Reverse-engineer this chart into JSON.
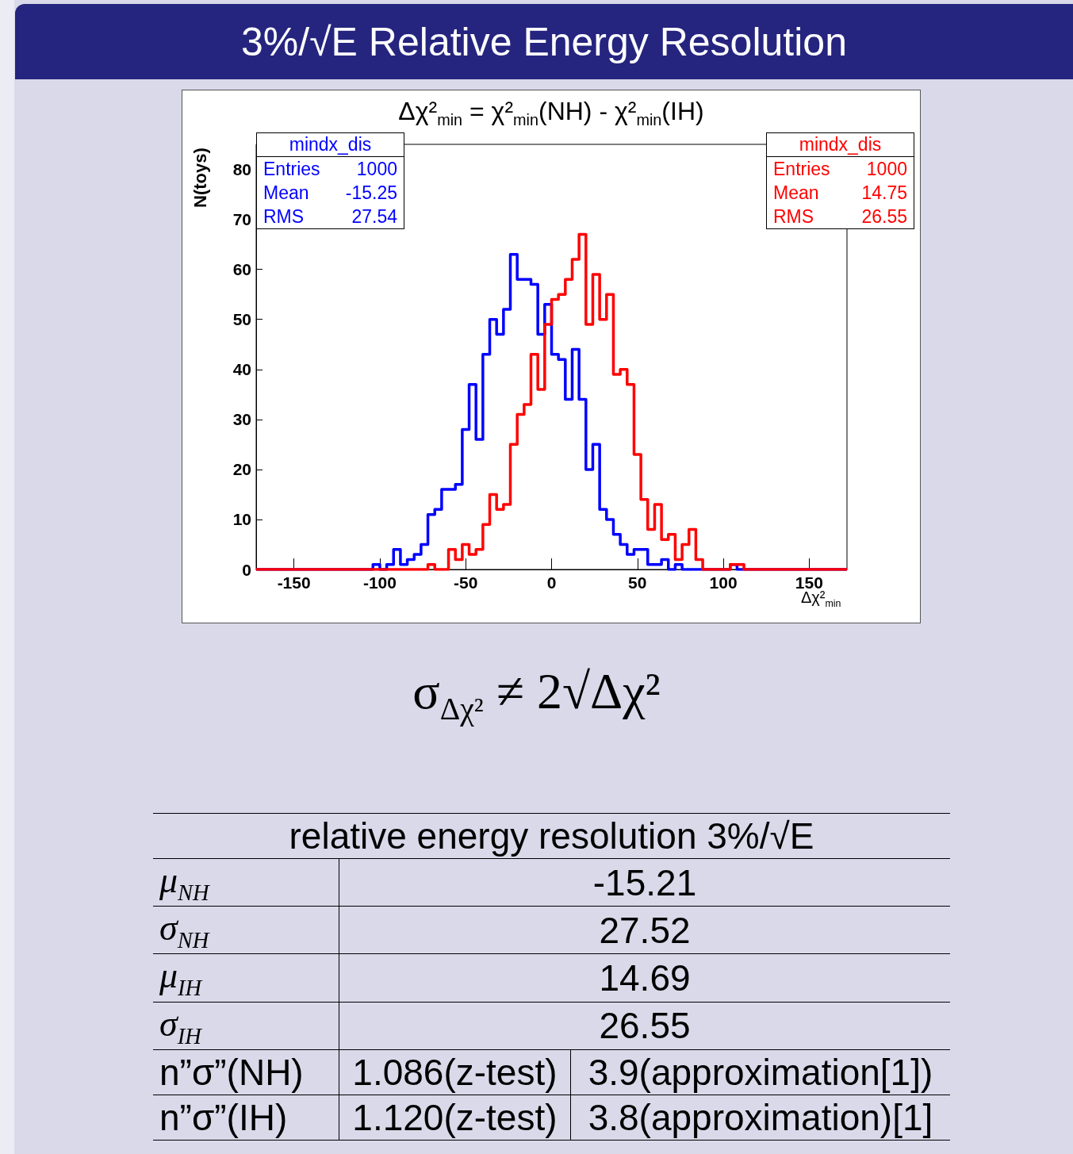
{
  "chart_data": {
    "type": "histogram",
    "title": "3%/√E Relative Energy Resolution",
    "subtitle": "Δχ²$_{min}$ = χ²$_{min}$(NH) - χ²$_{min}$(IH)",
    "xlabel": "Δχ²$_{min}$",
    "ylabel": "N(toys)",
    "bins": [
      -172,
      -168,
      -164,
      -160,
      -156,
      -152,
      -148,
      -144,
      -140,
      -136,
      -132,
      -128,
      -124,
      -120,
      -116,
      -112,
      -108,
      -104,
      -100,
      -96,
      -92,
      -88,
      -84,
      -80,
      -76,
      -72,
      -68,
      -64,
      -60,
      -56,
      -52,
      -48,
      -44,
      -40,
      -36,
      -32,
      -28,
      -24,
      -20,
      -16,
      -12,
      -8,
      -4,
      0,
      4,
      8,
      12,
      16,
      20,
      24,
      28,
      32,
      36,
      40,
      44,
      48,
      52,
      56,
      60,
      64,
      68,
      72,
      76,
      80,
      84,
      88,
      92,
      96,
      100,
      104,
      108,
      112,
      116,
      120,
      124,
      128,
      132,
      136,
      140,
      144,
      148,
      152,
      156,
      160,
      164,
      168,
      172
    ],
    "series": [
      {
        "name": "mindx_dis",
        "color": "#0000ff",
        "values": [
          0,
          0,
          0,
          0,
          0,
          0,
          0,
          0,
          0,
          0,
          0,
          0,
          0,
          0,
          0,
          0,
          0,
          1,
          0,
          1,
          4,
          1,
          2,
          3,
          5,
          11,
          12,
          16,
          16,
          17,
          28,
          37,
          26,
          43,
          50,
          47,
          52,
          63,
          58,
          58,
          57,
          47,
          53,
          43,
          42,
          34,
          44,
          34,
          20,
          25,
          12,
          10,
          7,
          5,
          3,
          4,
          4,
          1,
          1,
          2,
          0,
          1,
          0,
          0,
          0,
          0,
          0,
          0,
          0,
          1,
          0,
          0,
          0,
          0,
          0,
          0,
          0,
          0,
          0,
          0,
          0,
          0,
          0,
          0,
          0,
          0
        ]
      },
      {
        "name": "mindx_dis",
        "color": "#ff0000",
        "values": [
          0,
          0,
          0,
          0,
          0,
          0,
          0,
          0,
          0,
          0,
          0,
          0,
          0,
          0,
          0,
          0,
          0,
          0,
          0,
          0,
          0,
          0,
          0,
          0,
          0,
          1,
          0,
          0,
          4,
          2,
          5,
          3,
          4,
          9,
          15,
          12,
          13,
          25,
          31,
          33,
          43,
          36,
          49,
          54,
          55,
          58,
          62,
          67,
          49,
          59,
          50,
          55,
          39,
          40,
          37,
          23,
          14,
          8,
          13,
          6,
          7,
          2,
          5,
          8,
          2,
          0,
          0,
          0,
          0,
          1,
          1,
          0,
          0,
          0,
          0,
          0,
          0,
          0,
          0,
          0,
          0,
          0,
          0,
          0,
          0,
          0
        ]
      }
    ],
    "xlim": [
      -172,
      172
    ],
    "xticks": [
      -150,
      -100,
      -50,
      0,
      50,
      100,
      150
    ],
    "ylim": [
      0,
      85
    ],
    "yticks": [
      0,
      10,
      20,
      30,
      40,
      50,
      60,
      70,
      80
    ],
    "grid": false,
    "annotations": [
      "Entries",
      "1000",
      "Mean",
      "-15.25",
      "RMS",
      "27.54",
      "Entries",
      "1000",
      "Mean",
      "14.75",
      "RMS",
      "26.55",
      "σ$_{Δχ²}$ ≠ 2√Δχ²",
      "relative energy resolution 3%/√E",
      "μ$_{NH}$",
      "-15.21",
      "σ$_{NH}$",
      "27.52",
      "μ$_{IH}$",
      "14.69",
      "σ$_{IH}$",
      "26.55",
      "n”σ”(NH)",
      "1.086(z-test)",
      "3.9(approximation[1])",
      "n”σ”(IH)",
      "1.120(z-test)",
      "3.8(approximation)[1]"
    ]
  }
}
